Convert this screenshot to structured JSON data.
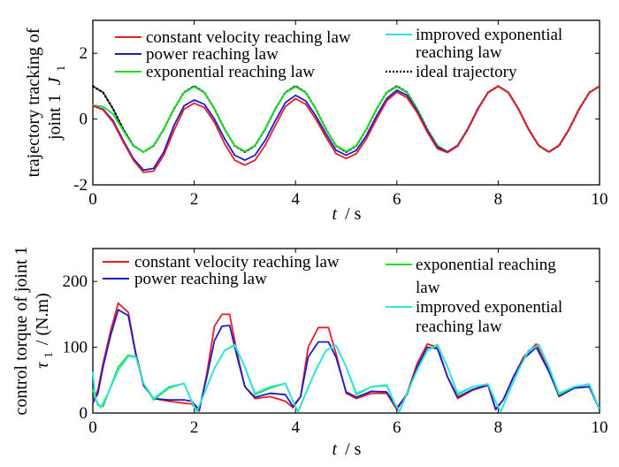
{
  "colors": {
    "constant": "#ee1b24",
    "power": "#1c1ccc",
    "exponential": "#1ee01e",
    "improved": "#2ae6e6",
    "ideal": "#000000"
  },
  "chart_data": [
    {
      "type": "line",
      "xlabel_italic": "t",
      "xlabel_unit": "/ s",
      "ylabel_line1": "trajectory tracking of",
      "ylabel_line2": "joint 1",
      "ylabel_symbol": "J",
      "ylabel_sub": "1",
      "xlim": [
        0,
        10
      ],
      "ylim": [
        -2,
        3
      ],
      "xticks": [
        0,
        2,
        4,
        6,
        8,
        10
      ],
      "yticks": [
        -2,
        0,
        2
      ],
      "grid": false,
      "legend_position": "top",
      "legend": [
        {
          "name": "constant velocity reaching law",
          "color_key": "constant",
          "dash": "solid"
        },
        {
          "name": "power reaching law",
          "color_key": "power",
          "dash": "solid"
        },
        {
          "name": "exponential reaching law",
          "color_key": "exponential",
          "dash": "solid"
        },
        {
          "name": "improved exponential",
          "name2": "reaching law",
          "color_key": "improved",
          "dash": "solid"
        },
        {
          "name": "ideal trajectory",
          "color_key": "ideal",
          "dash": "dotted"
        }
      ],
      "x": [
        0,
        0.2,
        0.4,
        0.6,
        0.8,
        1.0,
        1.2,
        1.4,
        1.6,
        1.8,
        2.0,
        2.2,
        2.4,
        2.6,
        2.8,
        3.0,
        3.2,
        3.4,
        3.6,
        3.8,
        4.0,
        4.2,
        4.4,
        4.6,
        4.8,
        5.0,
        5.2,
        5.4,
        5.6,
        5.8,
        6.0,
        6.2,
        6.4,
        6.6,
        6.8,
        7.0,
        7.2,
        7.4,
        7.6,
        7.8,
        8.0,
        8.2,
        8.4,
        8.6,
        8.8,
        9.0,
        9.2,
        9.4,
        9.6,
        9.8,
        10.0
      ],
      "series": [
        {
          "color_key": "ideal",
          "dash": "dotted",
          "values": [
            1.0,
            0.81,
            0.31,
            -0.31,
            -0.81,
            -1.0,
            -0.81,
            -0.31,
            0.31,
            0.81,
            1.0,
            0.81,
            0.31,
            -0.31,
            -0.81,
            -1.0,
            -0.81,
            -0.31,
            0.31,
            0.81,
            1.0,
            0.81,
            0.31,
            -0.31,
            -0.81,
            -1.0,
            -0.81,
            -0.31,
            0.31,
            0.81,
            1.0,
            0.81,
            0.31,
            -0.31,
            -0.81,
            -1.0,
            -0.81,
            -0.31,
            0.31,
            0.81,
            1.0,
            0.81,
            0.31,
            -0.31,
            -0.81,
            -1.0,
            -0.81,
            -0.31,
            0.31,
            0.81,
            1.0
          ]
        },
        {
          "color_key": "improved",
          "dash": "solid",
          "values": [
            0.42,
            0.38,
            0.15,
            -0.35,
            -0.82,
            -1.0,
            -0.8,
            -0.3,
            0.32,
            0.8,
            0.98,
            0.8,
            0.3,
            -0.32,
            -0.8,
            -0.98,
            -0.8,
            -0.3,
            0.32,
            0.8,
            0.98,
            0.8,
            0.3,
            -0.32,
            -0.8,
            -0.98,
            -0.8,
            -0.3,
            0.32,
            0.8,
            0.98,
            0.8,
            0.3,
            -0.32,
            -0.8,
            -1.0,
            -0.8,
            -0.3,
            0.32,
            0.8,
            1.0,
            0.8,
            0.3,
            -0.32,
            -0.8,
            -1.0,
            -0.8,
            -0.3,
            0.32,
            0.8,
            1.0
          ]
        },
        {
          "color_key": "exponential",
          "dash": "solid",
          "values": [
            0.42,
            0.38,
            0.15,
            -0.35,
            -0.82,
            -1.0,
            -0.8,
            -0.3,
            0.32,
            0.8,
            0.98,
            0.8,
            0.3,
            -0.32,
            -0.8,
            -0.98,
            -0.8,
            -0.3,
            0.32,
            0.8,
            0.98,
            0.8,
            0.3,
            -0.32,
            -0.8,
            -0.98,
            -0.8,
            -0.3,
            0.32,
            0.8,
            0.98,
            0.8,
            0.3,
            -0.32,
            -0.8,
            -1.0,
            -0.8,
            -0.3,
            0.32,
            0.8,
            1.0,
            0.8,
            0.3,
            -0.32,
            -0.8,
            -1.0,
            -0.8,
            -0.3,
            0.32,
            0.8,
            1.0
          ]
        },
        {
          "color_key": "power",
          "dash": "solid",
          "values": [
            0.4,
            0.3,
            -0.05,
            -0.65,
            -1.2,
            -1.55,
            -1.5,
            -1.0,
            -0.2,
            0.4,
            0.58,
            0.45,
            0.0,
            -0.6,
            -1.1,
            -1.25,
            -1.1,
            -0.65,
            -0.05,
            0.5,
            0.72,
            0.55,
            0.1,
            -0.45,
            -0.95,
            -1.1,
            -0.95,
            -0.5,
            0.1,
            0.62,
            0.88,
            0.72,
            0.25,
            -0.35,
            -0.85,
            -1.0,
            -0.8,
            -0.3,
            0.32,
            0.8,
            1.0,
            0.8,
            0.3,
            -0.32,
            -0.8,
            -1.0,
            -0.8,
            -0.3,
            0.32,
            0.8,
            1.0
          ]
        },
        {
          "color_key": "constant",
          "dash": "solid",
          "values": [
            0.4,
            0.28,
            -0.1,
            -0.7,
            -1.25,
            -1.62,
            -1.58,
            -1.1,
            -0.35,
            0.3,
            0.48,
            0.35,
            -0.1,
            -0.75,
            -1.25,
            -1.4,
            -1.25,
            -0.8,
            -0.2,
            0.38,
            0.62,
            0.45,
            0.0,
            -0.55,
            -1.05,
            -1.2,
            -1.05,
            -0.6,
            0.0,
            0.55,
            0.82,
            0.65,
            0.2,
            -0.4,
            -0.9,
            -1.02,
            -0.82,
            -0.32,
            0.3,
            0.8,
            1.0,
            0.8,
            0.3,
            -0.32,
            -0.8,
            -1.0,
            -0.8,
            -0.3,
            0.32,
            0.8,
            1.0
          ]
        }
      ]
    },
    {
      "type": "line",
      "xlabel_italic": "t",
      "xlabel_unit": "/ s",
      "ylabel_line1": "control torque of joint 1",
      "ylabel_symbol": "τ",
      "ylabel_sub": "1",
      "ylabel_unit": "/ (N.m)",
      "xlim": [
        0,
        10
      ],
      "ylim": [
        0,
        250
      ],
      "xticks": [
        0,
        2,
        4,
        6,
        8,
        10
      ],
      "yticks": [
        0,
        100,
        200
      ],
      "grid": false,
      "legend_position": "top",
      "legend": [
        {
          "name": "constant velocity reaching law",
          "color_key": "constant",
          "dash": "solid"
        },
        {
          "name": "power reaching law",
          "color_key": "power",
          "dash": "solid"
        },
        {
          "name": "exponential reaching",
          "name2": "law",
          "color_key": "exponential",
          "dash": "solid"
        },
        {
          "name": "improved exponential",
          "name2": "reaching law",
          "color_key": "improved",
          "dash": "solid"
        }
      ],
      "series": [
        {
          "color_key": "constant",
          "dash": "solid",
          "x": [
            0,
            0.1,
            0.2,
            0.35,
            0.5,
            0.7,
            0.85,
            1.0,
            1.2,
            1.5,
            1.8,
            1.95,
            2.1,
            2.25,
            2.4,
            2.55,
            2.7,
            2.85,
            3.0,
            3.2,
            3.5,
            3.8,
            3.95,
            4.1,
            4.25,
            4.45,
            4.65,
            4.8,
            5.0,
            5.2,
            5.5,
            5.8,
            6.0,
            6.2,
            6.4,
            6.6,
            6.8,
            7.0,
            7.2,
            7.5,
            7.8,
            7.95,
            8.1,
            8.3,
            8.5,
            8.75,
            9.0,
            9.2,
            9.5,
            9.8,
            10.0
          ],
          "values": [
            18,
            35,
            75,
            125,
            167,
            153,
            90,
            45,
            22,
            18,
            15,
            14,
            3,
            60,
            132,
            150,
            150,
            90,
            40,
            22,
            25,
            18,
            8,
            25,
            100,
            130,
            130,
            90,
            30,
            22,
            30,
            30,
            5,
            30,
            75,
            105,
            100,
            55,
            22,
            35,
            42,
            5,
            20,
            55,
            85,
            105,
            65,
            25,
            38,
            40,
            5
          ]
        },
        {
          "color_key": "power",
          "dash": "solid",
          "x": [
            0,
            0.1,
            0.2,
            0.35,
            0.5,
            0.7,
            0.85,
            1.0,
            1.2,
            1.5,
            1.8,
            1.95,
            2.1,
            2.25,
            2.4,
            2.55,
            2.7,
            2.85,
            3.0,
            3.2,
            3.5,
            3.8,
            3.95,
            4.1,
            4.25,
            4.45,
            4.65,
            4.8,
            5.0,
            5.2,
            5.5,
            5.8,
            6.0,
            6.2,
            6.4,
            6.6,
            6.8,
            7.0,
            7.2,
            7.5,
            7.8,
            7.95,
            8.1,
            8.3,
            8.5,
            8.75,
            9.0,
            9.2,
            9.5,
            9.8,
            10.0
          ],
          "values": [
            15,
            30,
            70,
            118,
            157,
            148,
            88,
            42,
            22,
            20,
            20,
            18,
            5,
            55,
            110,
            132,
            133,
            85,
            40,
            24,
            30,
            28,
            10,
            25,
            85,
            108,
            108,
            85,
            32,
            24,
            33,
            32,
            8,
            28,
            70,
            100,
            98,
            55,
            24,
            36,
            43,
            6,
            20,
            55,
            82,
            100,
            63,
            26,
            38,
            40,
            5
          ]
        },
        {
          "color_key": "exponential",
          "dash": "solid",
          "x": [
            0,
            0.1,
            0.2,
            0.35,
            0.5,
            0.7,
            0.85,
            1.0,
            1.2,
            1.5,
            1.8,
            1.95,
            2.05,
            2.2,
            2.4,
            2.6,
            2.8,
            3.0,
            3.2,
            3.5,
            3.8,
            3.95,
            4.05,
            4.2,
            4.4,
            4.6,
            4.8,
            5.0,
            5.2,
            5.5,
            5.8,
            5.95,
            6.05,
            6.2,
            6.4,
            6.6,
            6.8,
            7.0,
            7.2,
            7.5,
            7.8,
            7.95,
            8.05,
            8.2,
            8.4,
            8.6,
            8.8,
            9.0,
            9.2,
            9.5,
            9.8,
            10.0
          ],
          "values": [
            35,
            12,
            10,
            40,
            70,
            88,
            85,
            45,
            20,
            38,
            45,
            18,
            2,
            30,
            68,
            95,
            104,
            70,
            28,
            38,
            45,
            18,
            2,
            30,
            65,
            95,
            103,
            70,
            28,
            40,
            42,
            16,
            2,
            30,
            65,
            95,
            104,
            70,
            28,
            40,
            44,
            17,
            2,
            30,
            65,
            95,
            104,
            70,
            28,
            40,
            44,
            5
          ]
        },
        {
          "color_key": "improved",
          "dash": "solid",
          "x": [
            0,
            0.05,
            0.15,
            0.3,
            0.5,
            0.7,
            0.85,
            1.0,
            1.2,
            1.5,
            1.8,
            1.95,
            2.05,
            2.2,
            2.4,
            2.6,
            2.8,
            3.0,
            3.2,
            3.5,
            3.8,
            3.95,
            4.05,
            4.2,
            4.4,
            4.6,
            4.8,
            5.0,
            5.2,
            5.5,
            5.8,
            5.95,
            6.05,
            6.2,
            6.4,
            6.6,
            6.8,
            7.0,
            7.2,
            7.5,
            7.8,
            7.95,
            8.05,
            8.2,
            8.4,
            8.6,
            8.8,
            9.0,
            9.2,
            9.5,
            9.8,
            10.0
          ],
          "values": [
            62,
            22,
            8,
            30,
            65,
            86,
            85,
            45,
            22,
            40,
            45,
            18,
            2,
            30,
            68,
            95,
            103,
            70,
            30,
            40,
            45,
            18,
            2,
            30,
            65,
            95,
            103,
            70,
            30,
            40,
            43,
            16,
            2,
            30,
            65,
            95,
            103,
            70,
            30,
            40,
            44,
            17,
            2,
            30,
            65,
            95,
            103,
            70,
            30,
            40,
            44,
            5
          ]
        }
      ]
    }
  ]
}
